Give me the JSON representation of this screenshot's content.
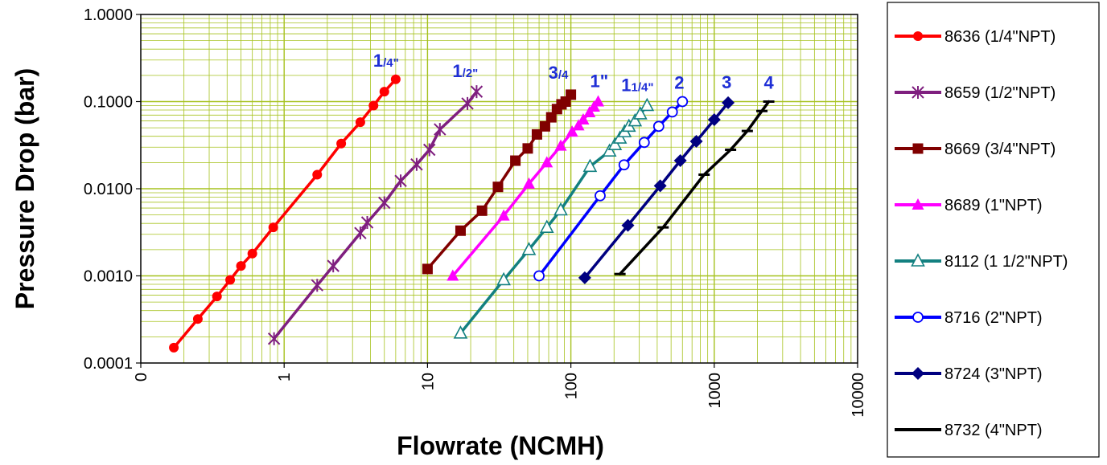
{
  "chart_data": {
    "type": "line",
    "xlabel": "Flowrate (NCMH)",
    "ylabel": "Pressure Drop (bar)",
    "x_scale": "log",
    "y_scale": "log",
    "xlim": [
      0.1,
      10000
    ],
    "ylim": [
      0.0001,
      1
    ],
    "x_ticks": [
      "0",
      "1",
      "10",
      "100",
      "1000",
      "10000"
    ],
    "y_ticks": [
      "1.0000",
      "0.1000",
      "0.0100",
      "0.0010",
      "0.0001"
    ],
    "grid": true,
    "grid_color": "#a6c21e",
    "legend_position": "right",
    "size_labels": [
      {
        "main": "1",
        "small": "/4\""
      },
      {
        "main": "1",
        "small": "/2\""
      },
      {
        "main": "3",
        "small": "/4"
      },
      {
        "main": "1\"",
        "small": ""
      },
      {
        "main": "1",
        "small": "1/4\""
      },
      {
        "main": "2",
        "small": ""
      },
      {
        "main": "3",
        "small": ""
      },
      {
        "main": "4",
        "small": ""
      }
    ],
    "series": [
      {
        "name": "8636 (1/4\"NPT)",
        "color": "#ff0000",
        "marker": "circle",
        "x": [
          0.17,
          0.25,
          0.34,
          0.42,
          0.5,
          0.6,
          0.84,
          1.7,
          2.5,
          3.4,
          4.2,
          5.0,
          6.0
        ],
        "y": [
          0.00015,
          0.00032,
          0.00058,
          0.0009,
          0.0013,
          0.0018,
          0.0036,
          0.0145,
          0.033,
          0.058,
          0.09,
          0.13,
          0.18
        ]
      },
      {
        "name": "8659 (1/2\"NPT)",
        "color": "#7f1f7f",
        "marker": "star",
        "x": [
          0.85,
          1.7,
          2.2,
          3.4,
          3.8,
          5.0,
          6.5,
          8.4,
          10.3,
          12.2,
          19.0,
          22.0
        ],
        "y": [
          0.00019,
          0.00078,
          0.0013,
          0.0031,
          0.0041,
          0.0069,
          0.0123,
          0.019,
          0.028,
          0.048,
          0.095,
          0.13
        ]
      },
      {
        "name": "8669 (3/4\"NPT)",
        "color": "#800000",
        "marker": "square",
        "x": [
          10,
          17,
          24,
          31,
          41,
          50,
          58,
          66,
          73,
          80,
          86,
          92,
          100
        ],
        "y": [
          0.0012,
          0.0033,
          0.0056,
          0.0105,
          0.021,
          0.029,
          0.042,
          0.052,
          0.066,
          0.082,
          0.093,
          0.1,
          0.12
        ]
      },
      {
        "name": "8689 (1\"NPT)",
        "color": "#ff00ff",
        "marker": "triangle",
        "x": [
          15,
          34,
          51,
          68,
          85,
          102,
          113,
          122,
          135,
          145,
          155
        ],
        "y": [
          0.001,
          0.0049,
          0.0114,
          0.02,
          0.031,
          0.045,
          0.053,
          0.062,
          0.075,
          0.087,
          0.1
        ]
      },
      {
        "name": "8112 (1 1/2\"NPT)",
        "color": "#138080",
        "marker": "triangle-open",
        "x": [
          17,
          34,
          51,
          68,
          85,
          136,
          186,
          203,
          220,
          237,
          254,
          280,
          305,
          340
        ],
        "y": [
          0.00022,
          0.0009,
          0.002,
          0.0036,
          0.0057,
          0.018,
          0.027,
          0.032,
          0.038,
          0.045,
          0.052,
          0.06,
          0.072,
          0.09
        ]
      },
      {
        "name": "8716 (2\"NPT)",
        "color": "#0000ff",
        "marker": "circle-open",
        "x": [
          60,
          160,
          235,
          325,
          410,
          510,
          600
        ],
        "y": [
          0.001,
          0.0083,
          0.0188,
          0.034,
          0.052,
          0.076,
          0.1
        ]
      },
      {
        "name": "8724 (3\"NPT)",
        "color": "#000080",
        "marker": "diamond",
        "x": [
          125,
          250,
          420,
          580,
          750,
          1000,
          1250
        ],
        "y": [
          0.00095,
          0.0038,
          0.0108,
          0.021,
          0.035,
          0.062,
          0.097
        ]
      },
      {
        "name": "8732 (4\"NPT)",
        "color": "#000000",
        "marker": "dash",
        "x": [
          220,
          440,
          850,
          1300,
          1700,
          2150,
          2400
        ],
        "y": [
          0.00105,
          0.0036,
          0.0145,
          0.028,
          0.046,
          0.078,
          0.1
        ]
      }
    ]
  }
}
